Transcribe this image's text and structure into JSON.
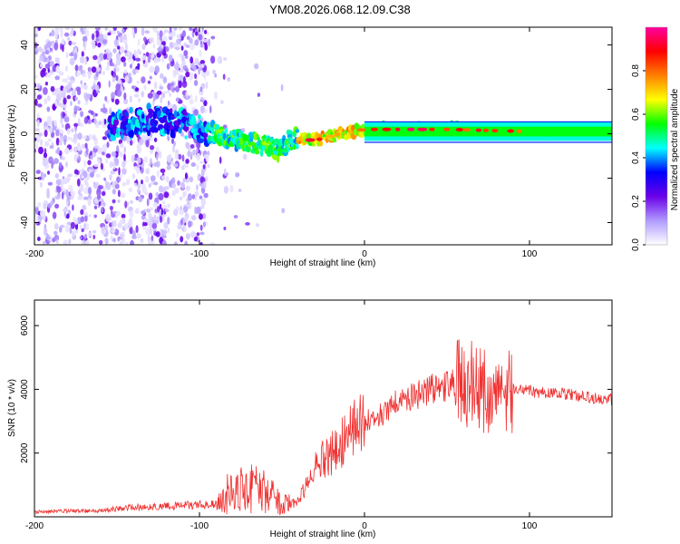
{
  "title": "YM08.2026.068.12.09.C38",
  "chart_data": [
    {
      "type": "heatmap",
      "xlabel": "Height of straight line (km)",
      "ylabel": "Frequency (Hz)",
      "xlim": [
        -200,
        150
      ],
      "ylim": [
        -50,
        48
      ],
      "xticks": [
        -200,
        -100,
        0,
        100
      ],
      "xtick_labels": [
        "-200",
        "-100",
        "0",
        "100"
      ],
      "yticks": [
        -40,
        -20,
        0,
        20,
        40
      ],
      "ytick_labels": [
        "-40",
        "-20",
        "0",
        "20",
        "40"
      ],
      "colorbar": {
        "label": "Normalized spectral amplitude",
        "range": [
          0,
          1
        ],
        "ticks": [
          0,
          0.2,
          0.4,
          0.6,
          0.8
        ],
        "tick_labels": [
          "0.0",
          "0.2",
          "0.4",
          "0.6",
          "0.8"
        ],
        "colors": [
          "#ffffff",
          "#b09aff",
          "#6a00e8",
          "#0000ff",
          "#00ffff",
          "#00ff00",
          "#ffff00",
          "#ff8000",
          "#ff0000",
          "#ff00a0"
        ]
      },
      "ridge": {
        "x": [
          -150,
          -125,
          -100,
          -80,
          -60,
          -52,
          -45,
          -30,
          -15,
          0,
          20,
          50,
          100,
          150
        ],
        "freq": [
          4,
          7,
          3,
          -3,
          -5,
          -8,
          -2,
          -3,
          0,
          2,
          2,
          2,
          1,
          1
        ]
      },
      "noise_region_x": [
        -200,
        -95
      ]
    },
    {
      "type": "line",
      "xlabel": "Height of straight line (km)",
      "ylabel": "SNR (10 * v/v)",
      "xlim": [
        -200,
        150
      ],
      "ylim": [
        0,
        6800
      ],
      "xticks": [
        -200,
        -100,
        0,
        100
      ],
      "xtick_labels": [
        "-200",
        "-100",
        "0",
        "100"
      ],
      "yticks": [
        2000,
        4000,
        6000
      ],
      "ytick_labels": [
        "2000",
        "4000",
        "6000"
      ],
      "series": [
        {
          "name": "SNR",
          "color": "#f03030",
          "x": [
            -200,
            -180,
            -160,
            -140,
            -120,
            -100,
            -90,
            -85,
            -80,
            -70,
            -60,
            -50,
            -45,
            -40,
            -35,
            -30,
            -25,
            -20,
            -15,
            -10,
            -5,
            0,
            10,
            20,
            30,
            40,
            50,
            60,
            65,
            70,
            75,
            80,
            85,
            90,
            100,
            110,
            120,
            130,
            140,
            150
          ],
          "values": [
            150,
            180,
            200,
            300,
            330,
            380,
            400,
            700,
            800,
            900,
            800,
            350,
            400,
            500,
            1000,
            1500,
            1800,
            2000,
            2300,
            2500,
            2800,
            3000,
            3200,
            3600,
            3800,
            4000,
            4100,
            4200,
            4200,
            4000,
            3900,
            3800,
            3900,
            4000,
            3950,
            3900,
            3850,
            3800,
            3700,
            3700
          ]
        }
      ]
    }
  ]
}
